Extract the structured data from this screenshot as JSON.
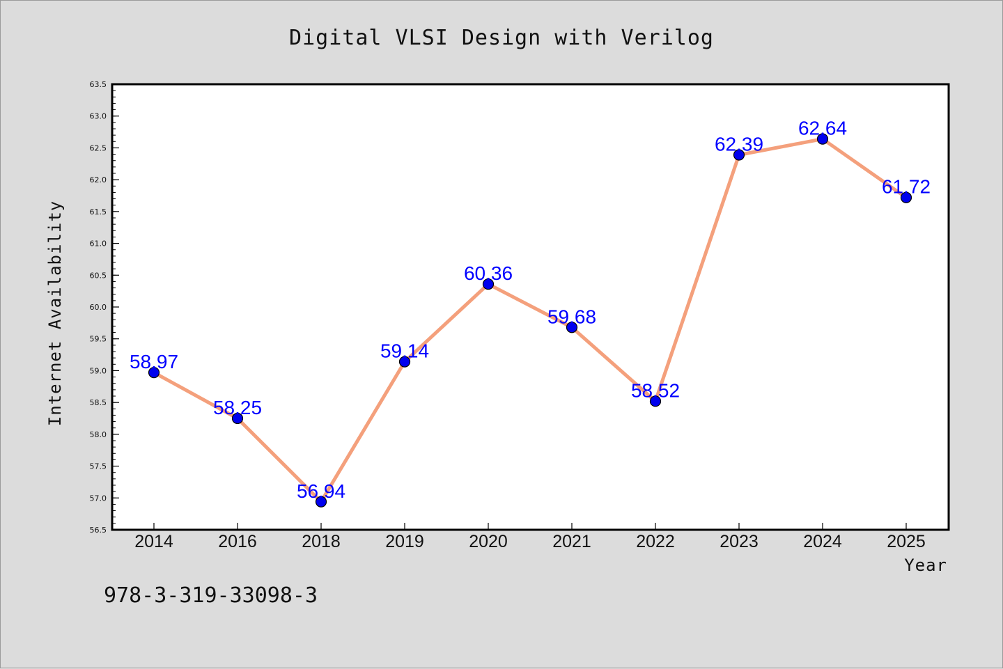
{
  "page": {
    "background": "#dcdcdc",
    "footer_text": "978-3-319-33098-3"
  },
  "chart_data": {
    "type": "line",
    "title": "Digital VLSI Design with Verilog",
    "xlabel": "Year",
    "ylabel": "Internet Availability",
    "categories": [
      "2014",
      "2016",
      "2018",
      "2019",
      "2020",
      "2021",
      "2022",
      "2023",
      "2024",
      "2025"
    ],
    "series": [
      {
        "values": [
          58.97,
          58.25,
          56.94,
          59.14,
          60.36,
          59.68,
          58.52,
          62.39,
          62.64,
          61.72
        ],
        "line_color": "#f4a07c",
        "marker_color": "#0000ee",
        "label_color": "#0000ff"
      }
    ],
    "data_labels": [
      "58.97",
      "58.25",
      "56.94",
      "59.14",
      "60.36",
      "59.68",
      "58.52",
      "62.39",
      "62.64",
      "61.72"
    ],
    "ylim": [
      56.5,
      63.5
    ],
    "yticks": [
      "56.5",
      "57.0",
      "57.5",
      "58.0",
      "58.5",
      "59.0",
      "59.5",
      "60.0",
      "60.5",
      "61.0",
      "61.5",
      "62.0",
      "62.5",
      "63.0",
      "63.5"
    ],
    "grid": false,
    "legend": "none"
  }
}
